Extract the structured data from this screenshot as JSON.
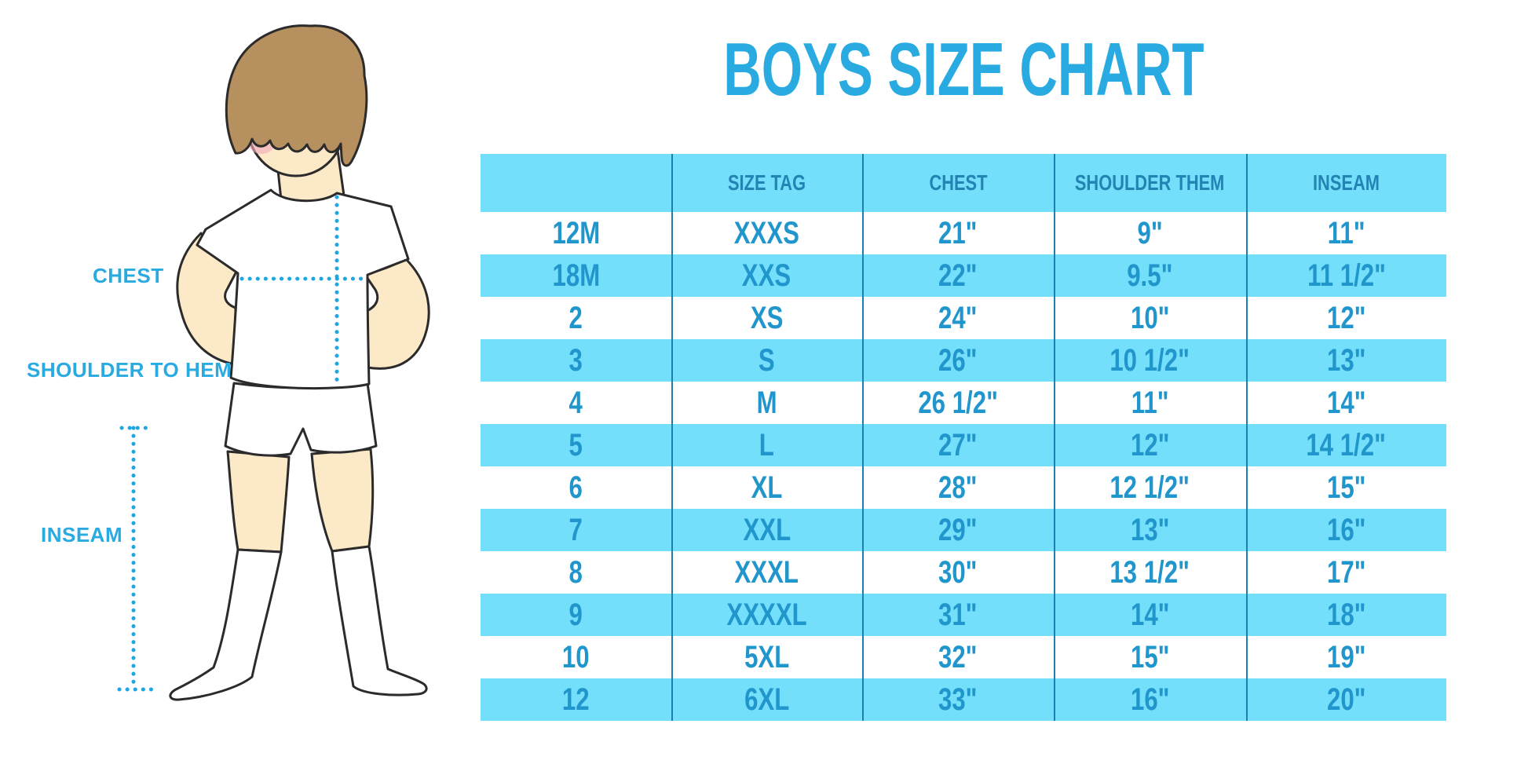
{
  "title": "BOYS SIZE CHART",
  "colors": {
    "accent_blue": "#29ABE2",
    "table_fill": "#74DFFB",
    "header_text": "#2383B3",
    "cell_text": "#2196CC",
    "divider": "#1B7FB0",
    "dotted_line": "#1CA7E0",
    "skin": "#FBE9C8",
    "hair": "#B6905F",
    "blush": "#F3A9BD",
    "outline": "#2B2B2B"
  },
  "figure": {
    "labels": {
      "chest": "CHEST",
      "shoulder_to_hem": "SHOULDER TO HEM",
      "inseam": "INSEAM"
    }
  },
  "table": {
    "headers": [
      "",
      "SIZE TAG",
      "CHEST",
      "SHOULDER THEM",
      "INSEAM"
    ],
    "rows": [
      [
        "12M",
        "XXXS",
        "21\"",
        "9\"",
        "11\""
      ],
      [
        "18M",
        "XXS",
        "22\"",
        "9.5\"",
        "11 1/2\""
      ],
      [
        "2",
        "XS",
        "24\"",
        "10\"",
        "12\""
      ],
      [
        "3",
        "S",
        "26\"",
        "10 1/2\"",
        "13\""
      ],
      [
        "4",
        "M",
        "26 1/2\"",
        "11\"",
        "14\""
      ],
      [
        "5",
        "L",
        "27\"",
        "12\"",
        "14 1/2\""
      ],
      [
        "6",
        "XL",
        "28\"",
        "12 1/2\"",
        "15\""
      ],
      [
        "7",
        "XXL",
        "29\"",
        "13\"",
        "16\""
      ],
      [
        "8",
        "XXXL",
        "30\"",
        "13 1/2\"",
        "17\""
      ],
      [
        "9",
        "XXXXL",
        "31\"",
        "14\"",
        "18\""
      ],
      [
        "10",
        "5XL",
        "32\"",
        "15\"",
        "19\""
      ],
      [
        "12",
        "6XL",
        "33\"",
        "16\"",
        "20\""
      ]
    ]
  }
}
